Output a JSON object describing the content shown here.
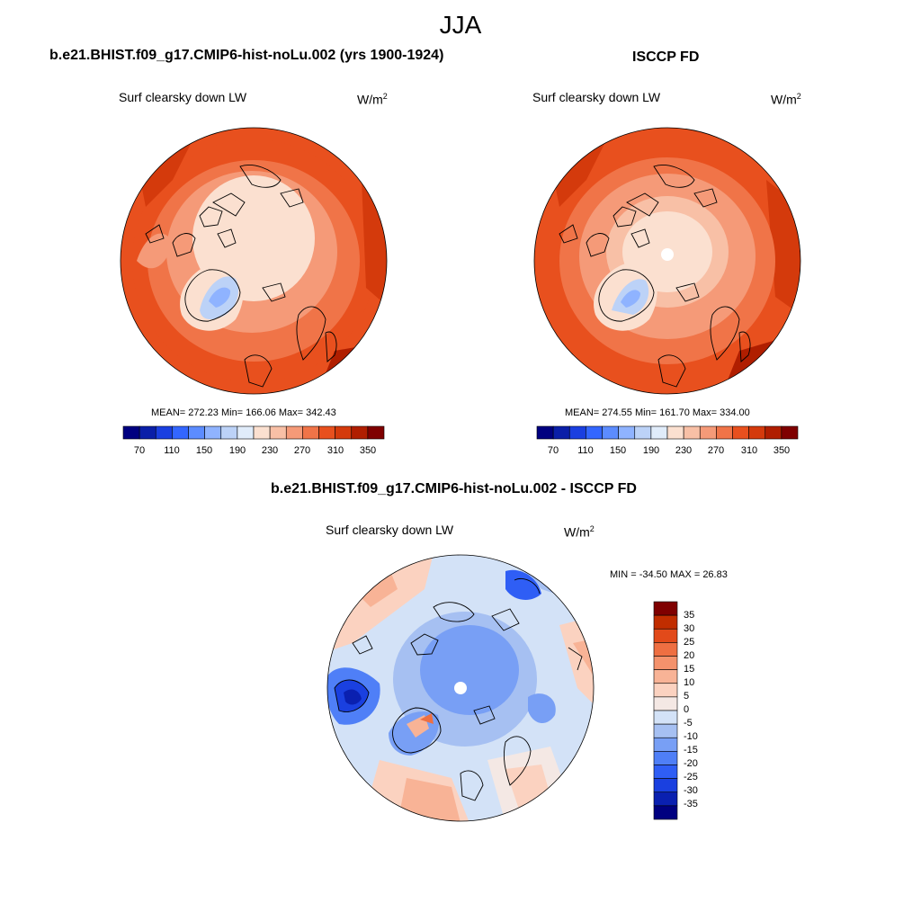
{
  "title": "JJA",
  "top_left": {
    "case": "b.e21.BHIST.f09_g17.CMIP6-hist-noLu.002 (yrs 1900-1924)",
    "variable": "Surf clearsky down LW",
    "units_base": "W/m",
    "units_exp": "2",
    "stats": "MEAN= 272.23  Min= 166.06  Max= 342.43",
    "colorbar_labels": [
      "70",
      "110",
      "150",
      "190",
      "230",
      "270",
      "310",
      "350"
    ]
  },
  "top_right": {
    "case": "ISCCP FD",
    "variable": "Surf clearsky down LW",
    "units_base": "W/m",
    "units_exp": "2",
    "stats": "MEAN= 274.55  Min= 161.70  Max= 334.00",
    "colorbar_labels": [
      "70",
      "110",
      "150",
      "190",
      "230",
      "270",
      "310",
      "350"
    ]
  },
  "difference": {
    "case": "b.e21.BHIST.f09_g17.CMIP6-hist-noLu.002 - ISCCP FD",
    "variable": "Surf clearsky down LW",
    "units_base": "W/m",
    "units_exp": "2",
    "stats": "MIN = -34.50 MAX =  26.83",
    "colorbar_labels": [
      "35",
      "30",
      "25",
      "20",
      "15",
      "10",
      "5",
      "0",
      "-5",
      "-10",
      "-15",
      "-20",
      "-25",
      "-30",
      "-35"
    ]
  },
  "colors": {
    "abs_scale": [
      "#000080",
      "#0a1fa8",
      "#1a3fe0",
      "#3366ff",
      "#5c8cff",
      "#8fb3ff",
      "#bcd2f7",
      "#e0ecfa",
      "#fbe0d0",
      "#f8c0a6",
      "#f59a78",
      "#f07448",
      "#e8501e",
      "#d43a0c",
      "#b01e00",
      "#7f0000"
    ],
    "diff_scale": [
      "#000080",
      "#0a20b0",
      "#1a40e0",
      "#2f5ef5",
      "#4f7ff7",
      "#789ff5",
      "#a6c0f2",
      "#d3e2f7",
      "#f4e8e4",
      "#fbd2c0",
      "#f8b396",
      "#f4926c",
      "#ee6f42",
      "#e24a1a",
      "#c12d00",
      "#7f0000"
    ]
  }
}
